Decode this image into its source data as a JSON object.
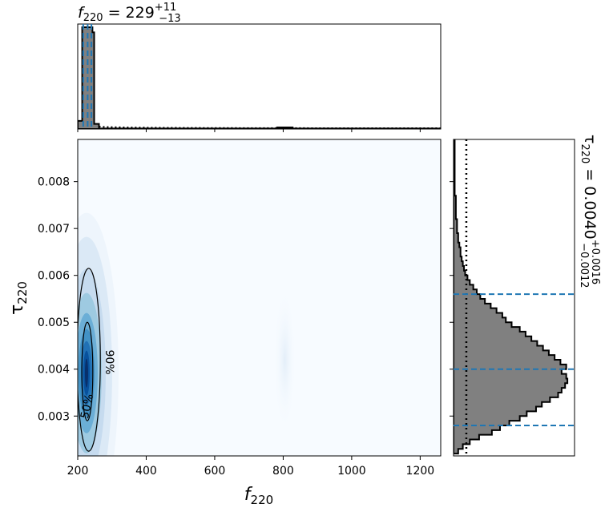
{
  "chart_data": {
    "type": "corner",
    "top_title": {
      "symbol": "f",
      "sub": "220",
      "median": "229",
      "plus": "+11",
      "minus": "−13"
    },
    "right_title": {
      "symbol": "τ",
      "sub": "220",
      "median": "0.0040",
      "plus": "+0.0016",
      "minus": "−0.0012"
    },
    "xlabel": {
      "symbol": "f",
      "sub": "220"
    },
    "ylabel": {
      "symbol": "τ",
      "sub": "220"
    },
    "xlim": [
      200,
      1260
    ],
    "ylim": [
      0.00215,
      0.0089
    ],
    "xticks": [
      200,
      400,
      600,
      800,
      1000,
      1200
    ],
    "xtick_labels": [
      "200",
      "400",
      "600",
      "800",
      "1000",
      "1200"
    ],
    "yticks": [
      0.003,
      0.004,
      0.005,
      0.006,
      0.007,
      0.008
    ],
    "ytick_labels": [
      "0.003",
      "0.004",
      "0.005",
      "0.006",
      "0.007",
      "0.008"
    ],
    "f220_quantiles": [
      216,
      229,
      240
    ],
    "tau220_quantiles": [
      0.0028,
      0.004,
      0.0056
    ],
    "contour_labels": [
      "50%",
      "90%"
    ],
    "contours": [
      {
        "level": "50%",
        "center": [
          228,
          0.00395
        ],
        "half_width": [
          16,
          0.00105
        ]
      },
      {
        "level": "90%",
        "center": [
          232,
          0.0042
        ],
        "half_width": [
          34,
          0.00195
        ]
      }
    ],
    "f220_histogram": {
      "bin_edges": [
        200,
        213,
        218,
        223,
        228,
        233,
        238,
        243,
        248,
        262,
        1260
      ],
      "density": [
        0.08,
        1.0,
        1.0,
        1.0,
        1.0,
        1.0,
        1.0,
        0.95,
        0.05,
        0.005
      ],
      "secondary": {
        "x": [
          780,
          830
        ],
        "density": 0.01
      }
    },
    "tau220_histogram": {
      "bin_centers": [
        0.00225,
        0.00235,
        0.00245,
        0.00255,
        0.00265,
        0.00275,
        0.00285,
        0.00295,
        0.00305,
        0.00315,
        0.00325,
        0.00335,
        0.00345,
        0.00355,
        0.00365,
        0.00375,
        0.00385,
        0.00395,
        0.00405,
        0.00415,
        0.00425,
        0.00435,
        0.00445,
        0.00455,
        0.00465,
        0.00475,
        0.00485,
        0.00495,
        0.00505,
        0.00515,
        0.00525,
        0.00535,
        0.00545,
        0.00555,
        0.00565,
        0.00575,
        0.00585,
        0.00595,
        0.00605,
        0.00615,
        0.00625,
        0.00635,
        0.00645,
        0.00655,
        0.00665,
        0.00675,
        0.00685,
        0.00695,
        0.00705,
        0.00715,
        0.00725,
        0.00735,
        0.00745,
        0.00755,
        0.00765,
        0.00775,
        0.00785,
        0.00795,
        0.00805,
        0.00815,
        0.00825,
        0.00835,
        0.00845,
        0.00855,
        0.00865,
        0.00875,
        0.00885
      ],
      "counts": [
        0.04,
        0.08,
        0.14,
        0.22,
        0.33,
        0.4,
        0.48,
        0.57,
        0.63,
        0.71,
        0.76,
        0.83,
        0.9,
        0.93,
        0.96,
        0.98,
        0.97,
        0.93,
        0.97,
        0.92,
        0.87,
        0.82,
        0.77,
        0.72,
        0.67,
        0.62,
        0.57,
        0.5,
        0.45,
        0.42,
        0.37,
        0.32,
        0.27,
        0.23,
        0.2,
        0.17,
        0.14,
        0.12,
        0.1,
        0.09,
        0.08,
        0.07,
        0.06,
        0.06,
        0.05,
        0.04,
        0.04,
        0.03,
        0.03,
        0.03,
        0.02,
        0.02,
        0.02,
        0.02,
        0.02,
        0.01,
        0.01,
        0.01,
        0.01,
        0.01,
        0.01,
        0.01,
        0.01,
        0.01,
        0.01,
        0.01,
        0.01
      ],
      "prior_x": 0.11
    },
    "colors": {
      "histogram_fill": "#808080",
      "quantile_line": "#1f77b4",
      "density_low": "#f7fbff",
      "density_mid": "#6baed6",
      "density_high": "#08306b"
    }
  }
}
